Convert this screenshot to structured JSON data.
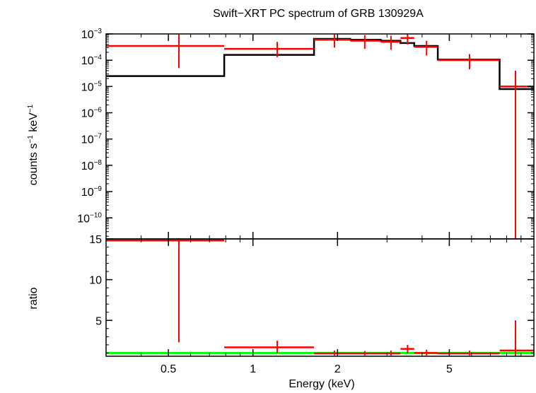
{
  "chart_data": {
    "type": "scatter",
    "title": "Swift−XRT PC spectrum of GRB 130929A",
    "xlabel": "Energy (keV)",
    "xscale": "log",
    "xlim": [
      0.3,
      10.0
    ],
    "xticks": [
      {
        "value": 0.5,
        "label": "0.5"
      },
      {
        "value": 1,
        "label": "1"
      },
      {
        "value": 2,
        "label": "2"
      },
      {
        "value": 5,
        "label": "5"
      }
    ],
    "top_panel": {
      "ylabel_main": "counts s",
      "ylabel_exp1": "−1",
      "ylabel_mid": " keV",
      "ylabel_exp2": "−1",
      "yscale": "log",
      "ylim_exp": [
        -10.8,
        -3.0
      ],
      "yticks": [
        {
          "exp": -3,
          "label_base": "10",
          "label_exp": "−3"
        },
        {
          "exp": -4,
          "label_base": "10",
          "label_exp": "−4"
        },
        {
          "exp": -5,
          "label_base": "10",
          "label_exp": "−5"
        },
        {
          "exp": -6,
          "label_base": "10",
          "label_exp": "−6"
        },
        {
          "exp": -7,
          "label_base": "10",
          "label_exp": "−7"
        },
        {
          "exp": -8,
          "label_base": "10",
          "label_exp": "−8"
        },
        {
          "exp": -9,
          "label_base": "10",
          "label_exp": "−9"
        },
        {
          "exp": -10,
          "label_base": "10",
          "label_exp": "−10"
        }
      ],
      "series": [
        {
          "name": "data",
          "color": "#ff0000",
          "points": [
            {
              "xlo": 0.3,
              "xhi": 0.79,
              "x": 0.545,
              "y": 0.00035,
              "ylo": 5e-05,
              "yhi": 0.001
            },
            {
              "xlo": 0.79,
              "xhi": 1.65,
              "x": 1.22,
              "y": 0.00027,
              "ylo": 0.00013,
              "yhi": 0.0005
            },
            {
              "xlo": 1.65,
              "xhi": 2.22,
              "x": 1.95,
              "y": 0.0006,
              "ylo": 0.0003,
              "yhi": 0.00095
            },
            {
              "xlo": 2.22,
              "xhi": 2.85,
              "x": 2.5,
              "y": 0.00055,
              "ylo": 0.00027,
              "yhi": 0.0009
            },
            {
              "xlo": 2.85,
              "xhi": 3.35,
              "x": 3.1,
              "y": 0.0005,
              "ylo": 0.00025,
              "yhi": 0.00085
            },
            {
              "xlo": 3.35,
              "xhi": 3.75,
              "x": 3.55,
              "y": 0.0007,
              "ylo": 0.0004,
              "yhi": 0.001
            },
            {
              "xlo": 3.75,
              "xhi": 4.55,
              "x": 4.15,
              "y": 0.00032,
              "ylo": 0.00015,
              "yhi": 0.00055
            },
            {
              "xlo": 4.55,
              "xhi": 7.55,
              "x": 5.9,
              "y": 0.0001,
              "ylo": 4.5e-05,
              "yhi": 0.00017
            },
            {
              "xlo": 7.55,
              "xhi": 10.0,
              "x": 8.6,
              "y": 1e-05,
              "ylo": 1e-11,
              "yhi": 4e-05
            }
          ]
        },
        {
          "name": "model",
          "color": "#000000",
          "steps": [
            {
              "xlo": 0.3,
              "xhi": 0.79,
              "y": 2.5e-05
            },
            {
              "xlo": 0.79,
              "xhi": 1.65,
              "y": 0.00016
            },
            {
              "xlo": 1.65,
              "xhi": 2.22,
              "y": 0.00065
            },
            {
              "xlo": 2.22,
              "xhi": 2.85,
              "y": 0.0006
            },
            {
              "xlo": 2.85,
              "xhi": 3.35,
              "y": 0.00055
            },
            {
              "xlo": 3.35,
              "xhi": 3.75,
              "y": 0.00045
            },
            {
              "xlo": 3.75,
              "xhi": 4.55,
              "y": 0.00035
            },
            {
              "xlo": 4.55,
              "xhi": 7.55,
              "y": 0.000105
            },
            {
              "xlo": 7.55,
              "xhi": 10.0,
              "y": 8e-06
            }
          ]
        }
      ]
    },
    "bottom_panel": {
      "ylabel": "ratio",
      "yscale": "linear",
      "ylim": [
        0.6,
        15.0
      ],
      "yticks": [
        {
          "value": 5,
          "label": "5"
        },
        {
          "value": 10,
          "label": "10"
        },
        {
          "value": 15,
          "label": "15"
        }
      ],
      "reference_line": {
        "y": 1.0,
        "color": "#00ff00"
      },
      "series": [
        {
          "name": "ratio",
          "color": "#ff0000",
          "points": [
            {
              "xlo": 0.3,
              "xhi": 0.79,
              "x": 0.545,
              "y": 14.8,
              "ylo": 2.3,
              "yhi": 15.0
            },
            {
              "xlo": 0.79,
              "xhi": 1.65,
              "x": 1.22,
              "y": 1.7,
              "ylo": 1.0,
              "yhi": 2.5
            },
            {
              "xlo": 1.65,
              "xhi": 2.22,
              "x": 1.95,
              "y": 0.95,
              "ylo": 0.7,
              "yhi": 1.3
            },
            {
              "xlo": 2.22,
              "xhi": 2.85,
              "x": 2.5,
              "y": 0.95,
              "ylo": 0.7,
              "yhi": 1.25
            },
            {
              "xlo": 2.85,
              "xhi": 3.35,
              "x": 3.1,
              "y": 0.95,
              "ylo": 0.7,
              "yhi": 1.3
            },
            {
              "xlo": 3.35,
              "xhi": 3.75,
              "x": 3.55,
              "y": 1.5,
              "ylo": 0.95,
              "yhi": 2.0
            },
            {
              "xlo": 3.75,
              "xhi": 4.55,
              "x": 4.15,
              "y": 1.0,
              "ylo": 0.7,
              "yhi": 1.4
            },
            {
              "xlo": 4.55,
              "xhi": 7.55,
              "x": 5.9,
              "y": 0.95,
              "ylo": 0.7,
              "yhi": 1.3
            },
            {
              "xlo": 7.55,
              "xhi": 10.0,
              "x": 8.6,
              "y": 1.3,
              "ylo": 0.6,
              "yhi": 5.0
            }
          ]
        }
      ]
    }
  }
}
